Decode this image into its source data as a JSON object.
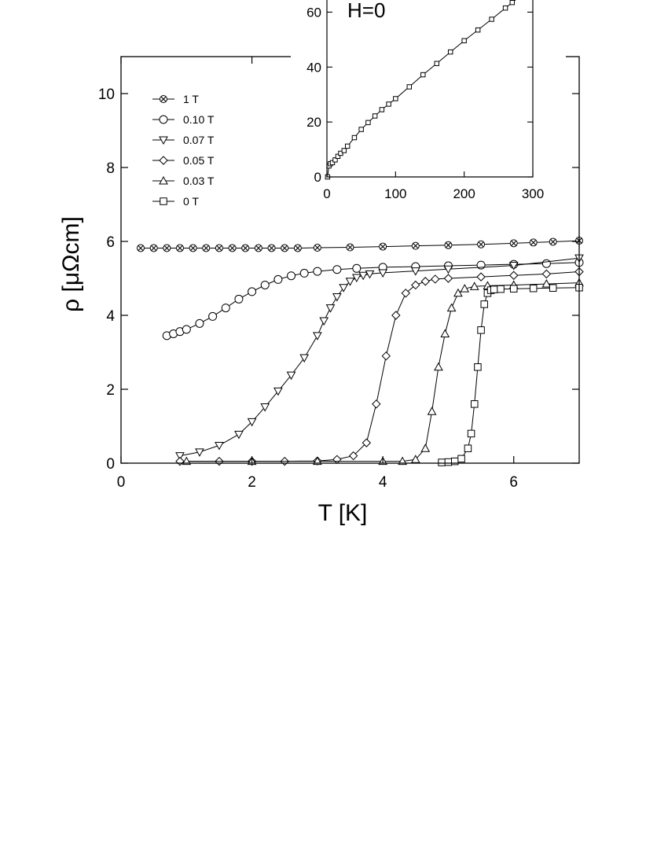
{
  "chart_data": [
    {
      "type": "line",
      "title": "",
      "xlabel": "T [K]",
      "ylabel": "ρ [μΩcm]",
      "xlim": [
        0,
        7
      ],
      "ylim": [
        0,
        11
      ],
      "xticks": [
        0,
        2,
        4,
        6
      ],
      "yticks": [
        0,
        2,
        4,
        6,
        8,
        10
      ],
      "grid": false,
      "legend_position": "top-left",
      "series": [
        {
          "name": "1 T",
          "marker": "crossed-circle",
          "x": [
            0.3,
            0.5,
            0.7,
            0.9,
            1.1,
            1.3,
            1.5,
            1.7,
            1.9,
            2.1,
            2.3,
            2.5,
            2.7,
            3.0,
            3.5,
            4.0,
            4.5,
            5.0,
            5.5,
            6.0,
            6.3,
            6.6,
            7.0
          ],
          "y": [
            5.82,
            5.82,
            5.82,
            5.82,
            5.82,
            5.82,
            5.82,
            5.82,
            5.82,
            5.82,
            5.82,
            5.82,
            5.82,
            5.83,
            5.84,
            5.86,
            5.88,
            5.9,
            5.92,
            5.95,
            5.97,
            5.99,
            6.02
          ]
        },
        {
          "name": "0.10 T",
          "marker": "circle",
          "x": [
            0.7,
            0.8,
            0.9,
            1.0,
            1.2,
            1.4,
            1.6,
            1.8,
            2.0,
            2.2,
            2.4,
            2.6,
            2.8,
            3.0,
            3.3,
            3.6,
            4.0,
            4.5,
            5.0,
            5.5,
            6.0,
            6.5,
            7.0
          ],
          "y": [
            3.45,
            3.5,
            3.56,
            3.62,
            3.78,
            3.97,
            4.2,
            4.44,
            4.64,
            4.82,
            4.97,
            5.07,
            5.14,
            5.19,
            5.24,
            5.27,
            5.3,
            5.32,
            5.34,
            5.36,
            5.38,
            5.4,
            5.43
          ]
        },
        {
          "name": "0.07 T",
          "marker": "triangle-down",
          "x": [
            0.9,
            1.2,
            1.5,
            1.8,
            2.0,
            2.2,
            2.4,
            2.6,
            2.8,
            3.0,
            3.1,
            3.2,
            3.3,
            3.4,
            3.5,
            3.6,
            3.7,
            3.8,
            4.0,
            4.5,
            5.0,
            6.0,
            7.0
          ],
          "y": [
            0.2,
            0.3,
            0.48,
            0.78,
            1.12,
            1.52,
            1.95,
            2.38,
            2.85,
            3.45,
            3.85,
            4.2,
            4.5,
            4.75,
            4.92,
            5.02,
            5.08,
            5.12,
            5.15,
            5.2,
            5.25,
            5.35,
            5.55
          ]
        },
        {
          "name": "0.05 T",
          "marker": "diamond",
          "x": [
            0.9,
            1.5,
            2.0,
            2.5,
            3.0,
            3.3,
            3.55,
            3.75,
            3.9,
            4.05,
            4.2,
            4.35,
            4.5,
            4.65,
            4.8,
            5.0,
            5.5,
            6.0,
            6.5,
            7.0
          ],
          "y": [
            0.05,
            0.05,
            0.05,
            0.05,
            0.06,
            0.1,
            0.2,
            0.55,
            1.6,
            2.9,
            4.0,
            4.6,
            4.82,
            4.92,
            4.98,
            5.0,
            5.04,
            5.08,
            5.12,
            5.18
          ]
        },
        {
          "name": "0.03 T",
          "marker": "triangle-up",
          "x": [
            1.0,
            2.0,
            3.0,
            4.0,
            4.3,
            4.5,
            4.65,
            4.75,
            4.85,
            4.95,
            5.05,
            5.15,
            5.25,
            5.4,
            5.6,
            6.0,
            6.5,
            7.0
          ],
          "y": [
            0.05,
            0.05,
            0.05,
            0.05,
            0.05,
            0.1,
            0.4,
            1.4,
            2.6,
            3.5,
            4.2,
            4.6,
            4.72,
            4.78,
            4.8,
            4.82,
            4.85,
            4.88
          ]
        },
        {
          "name": "0 T",
          "marker": "square",
          "x": [
            4.9,
            5.0,
            5.1,
            5.2,
            5.3,
            5.35,
            5.4,
            5.45,
            5.5,
            5.55,
            5.6,
            5.65,
            5.7,
            5.8,
            6.0,
            6.3,
            6.6,
            7.0
          ],
          "y": [
            0.02,
            0.03,
            0.05,
            0.12,
            0.4,
            0.8,
            1.6,
            2.6,
            3.6,
            4.3,
            4.6,
            4.68,
            4.7,
            4.71,
            4.72,
            4.73,
            4.74,
            4.75
          ]
        }
      ]
    },
    {
      "type": "line",
      "title": "",
      "xlabel": "",
      "ylabel": "",
      "annotation": "H=0",
      "xlim": [
        0,
        300
      ],
      "ylim": [
        0,
        70
      ],
      "xticks": [
        0,
        100,
        200,
        300
      ],
      "yticks": [
        0,
        20,
        40,
        60
      ],
      "grid": false,
      "series": [
        {
          "marker": "square",
          "x": [
            1,
            3,
            5,
            8,
            12,
            16,
            20,
            25,
            30,
            40,
            50,
            60,
            70,
            80,
            90,
            100,
            120,
            140,
            160,
            180,
            200,
            220,
            240,
            260,
            270,
            280
          ],
          "y": [
            0,
            4,
            4.8,
            5.2,
            6.2,
            7.5,
            8.6,
            9.6,
            11.2,
            14.3,
            17.3,
            19.8,
            22.2,
            24.5,
            26.5,
            28.5,
            32.8,
            37.2,
            41.3,
            45.5,
            49.6,
            53.5,
            57.4,
            61.5,
            63.5,
            65.5
          ]
        }
      ]
    }
  ]
}
